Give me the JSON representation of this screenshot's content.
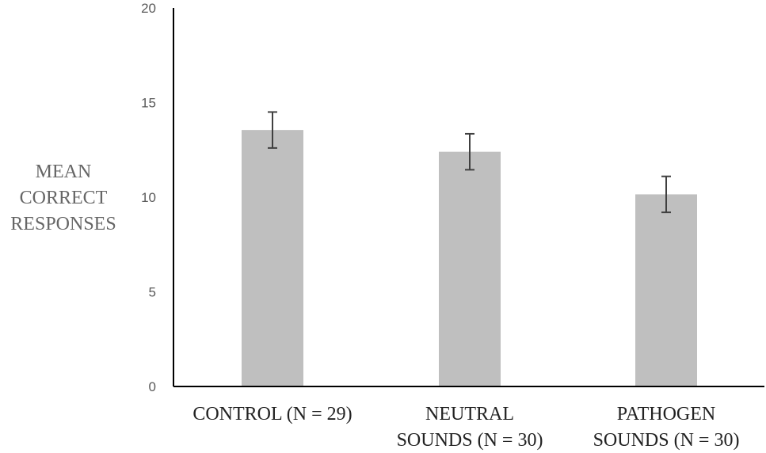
{
  "chart_data": {
    "type": "bar",
    "title": "",
    "ylabel": "MEAN CORRECT RESPONSES",
    "ylabel_lines": [
      "MEAN",
      "CORRECT",
      "RESPONSES"
    ],
    "xlabel": "",
    "ylim": [
      0,
      20
    ],
    "yticks": [
      0,
      5,
      10,
      15,
      20
    ],
    "categories": [
      "CONTROL (N = 29)",
      "NEUTRAL SOUNDS (N = 30)",
      "PATHOGEN SOUNDS (N = 30)"
    ],
    "category_lines": [
      [
        "CONTROL (N = 29)"
      ],
      [
        "NEUTRAL",
        "SOUNDS (N = 30)"
      ],
      [
        "PATHOGEN",
        "SOUNDS (N = 30)"
      ]
    ],
    "values": [
      13.55,
      12.4,
      10.15
    ],
    "error": [
      0.95,
      0.95,
      0.95
    ],
    "grid": false,
    "legend": "none",
    "bar_color": "#bfbfbf",
    "error_color": "#404040",
    "axis_color": "#000000"
  }
}
